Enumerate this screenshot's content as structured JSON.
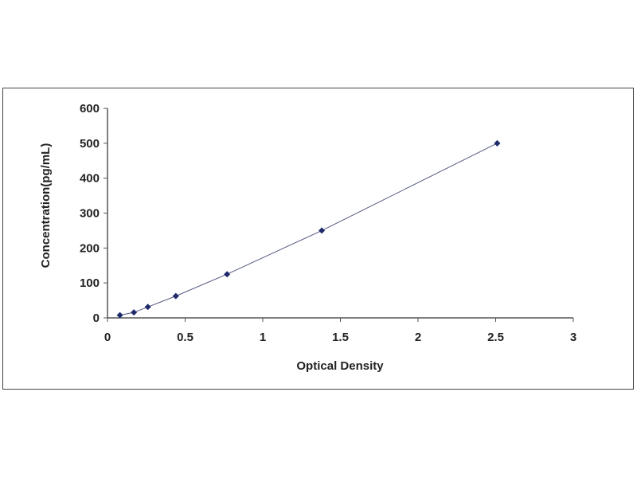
{
  "chart_data": {
    "type": "scatter",
    "title": "",
    "xlabel": "Optical Density",
    "ylabel": "Concentration(pg/mL)",
    "xlim": [
      0,
      3
    ],
    "ylim": [
      0,
      600
    ],
    "xticks": [
      "0",
      "0.5",
      "1",
      "1.5",
      "2",
      "2.5",
      "3"
    ],
    "yticks": [
      "0",
      "100",
      "200",
      "300",
      "400",
      "500",
      "600"
    ],
    "grid": false,
    "legend": "none",
    "fit_line": true,
    "series": [
      {
        "x": [
          0.08,
          0.17,
          0.26,
          0.44,
          0.77,
          1.38,
          2.51
        ],
        "y": [
          7.8,
          15.6,
          31.25,
          62.5,
          125,
          250,
          500
        ],
        "color": "#1f2a6b"
      }
    ]
  }
}
